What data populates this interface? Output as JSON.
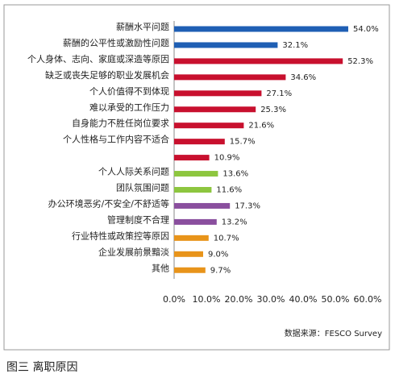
{
  "chart_data": {
    "type": "bar",
    "orientation": "horizontal",
    "categories": [
      "薪酬水平问题",
      "薪酬的公平性或激励性问题",
      "个人身体、志向、家庭或深造等原因",
      "缺乏或丧失足够的职业发展机会",
      "个人价值得不到体现",
      "难以承受的工作压力",
      "自身能力不胜任岗位要求",
      "个人性格与工作内容不适合",
      null,
      "个人人际关系问题",
      "团队氛围问题",
      "办公环境恶劣/不安全/不舒适等",
      "管理制度不合理",
      "行业特性或政策控等原因",
      "企业发展前景黯淡",
      "其他"
    ],
    "values": [
      54.0,
      32.1,
      52.3,
      34.6,
      27.1,
      25.3,
      21.6,
      15.7,
      10.9,
      13.6,
      11.6,
      17.3,
      13.2,
      10.7,
      9.0,
      9.7
    ],
    "value_labels": [
      "54.0%",
      "32.1%",
      "52.3%",
      "34.6%",
      "27.1%",
      "25.3%",
      "21.6%",
      "15.7%",
      "10.9%",
      "13.6%",
      "11.6%",
      "17.3%",
      "13.2%",
      "10.7%",
      "9.0%",
      "9.7%"
    ],
    "colors": [
      "#1f5fb4",
      "#1f5fb4",
      "#c8102e",
      "#c8102e",
      "#c8102e",
      "#c8102e",
      "#c8102e",
      "#c8102e",
      "#c8102e",
      "#8dc63f",
      "#8dc63f",
      "#8a4f9e",
      "#8a4f9e",
      "#e8941a",
      "#e8941a",
      "#e8941a"
    ],
    "xlim": [
      0,
      60
    ],
    "xticks": [
      {
        "value": 0,
        "label": "0.0%"
      },
      {
        "value": 10,
        "label": "10.0%"
      },
      {
        "value": 20,
        "label": "20.0%"
      },
      {
        "value": 30,
        "label": "30.0%"
      },
      {
        "value": 40,
        "label": "40.0%"
      },
      {
        "value": 50,
        "label": "50.0%"
      },
      {
        "value": 60,
        "label": "60.0%"
      }
    ],
    "source": "数据来源：FESCO Survey",
    "caption": "图三 离职原因"
  }
}
